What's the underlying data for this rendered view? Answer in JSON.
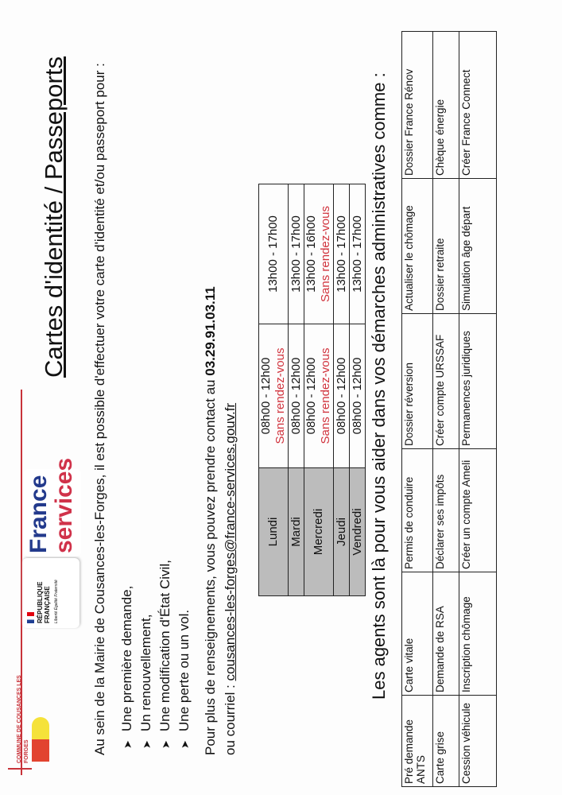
{
  "logos": {
    "commune": "COMMUNE DE COUSANCES LES FORGES",
    "republique": "RÉPUBLIQUE FRANÇAISE",
    "motto": "Liberté Égalité Fraternité",
    "france_services_line1": "France",
    "france_services_line2": "services"
  },
  "title": "Cartes d'identité / Passeports",
  "intro": "Au sein de la Mairie de Cousances-les-Forges, il est possible d'effectuer votre carte d'identité et/ou passeport pour :",
  "bullets": [
    "Une première demande,",
    "Un renouvellement,",
    "Une modification d'État Civil,",
    "Une perte ou un vol."
  ],
  "contact": {
    "line1": "Pour plus de renseignements, vous pouvez prendre contact au",
    "phone": "03.29.91.03.11",
    "line2": "ou courriel :",
    "email": "cousances-les-forges@france-services.gouv.fr"
  },
  "hours": [
    {
      "day": "Lundi",
      "morning": "08h00 - 12h00",
      "morning_note": "Sans rendez-vous",
      "afternoon": "13h00 - 17h00",
      "afternoon_note": ""
    },
    {
      "day": "Mardi",
      "morning": "08h00 - 12h00",
      "morning_note": "",
      "afternoon": "13h00 - 17h00",
      "afternoon_note": ""
    },
    {
      "day": "Mercredi",
      "morning": "08h00 - 12h00",
      "morning_note": "Sans rendez-vous",
      "afternoon": "13h00 - 16h00",
      "afternoon_note": "Sans rendez-vous"
    },
    {
      "day": "Jeudi",
      "morning": "08h00 - 12h00",
      "morning_note": "",
      "afternoon": "13h00 - 17h00",
      "afternoon_note": ""
    },
    {
      "day": "Vendredi",
      "morning": "08h00 - 12h00",
      "morning_note": "",
      "afternoon": "13h00 - 17h00",
      "afternoon_note": ""
    }
  ],
  "agents_heading": "Les agents sont là pour vous aider dans vos démarches administratives comme :",
  "services": [
    [
      "Pré demande ANTS",
      "Carte vitale",
      "Permis de conduire",
      "Dossier réversion",
      "Actualiser le chômage",
      "Dossier France Rénov"
    ],
    [
      "Carte grise",
      "Demande de RSA",
      "Déclarer ses impôts",
      "Créer compte URSSAF",
      "Dossier retraite",
      "Chèque énergie"
    ],
    [
      "Cession véhicule",
      "Inscription chômage",
      "Créer un compte Ameli",
      "Permanences juridiques",
      "Simulation âge départ",
      "Créer France Connect"
    ]
  ],
  "colors": {
    "accent_red": "#d1343e",
    "france_blue": "#233a8c",
    "header_grey": "#bcbcbc"
  }
}
